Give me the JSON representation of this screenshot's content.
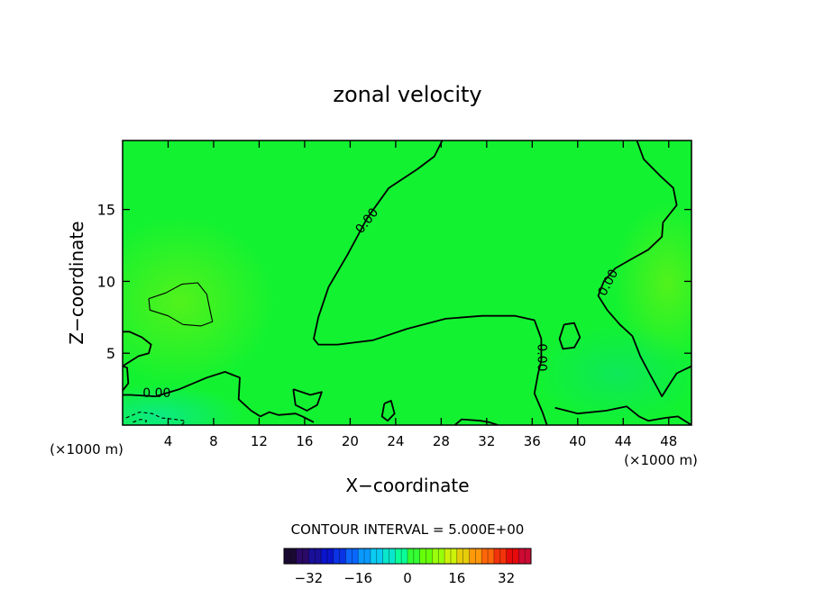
{
  "chart_data": {
    "type": "heatmap",
    "title": "zonal velocity",
    "xlabel": "X−coordinate",
    "ylabel": "Z−coordinate",
    "x_unit_left": "(×1000 m)",
    "x_unit_right": "(×1000 m)",
    "xlim": [
      0,
      50
    ],
    "ylim": [
      0,
      19.8
    ],
    "x_ticks": [
      4,
      8,
      12,
      16,
      20,
      24,
      28,
      32,
      36,
      40,
      44,
      48
    ],
    "x_tick_labels": [
      "4",
      "8",
      "12",
      "16",
      "20",
      "24",
      "28",
      "32",
      "36",
      "40",
      "44",
      "48"
    ],
    "y_ticks": [
      5,
      10,
      15
    ],
    "y_tick_labels": [
      "5",
      "10",
      "15"
    ],
    "contour_labels": [
      {
        "text": "0.00",
        "x": 3.0,
        "y": 2.2,
        "angle": 0
      },
      {
        "text": "0.00",
        "x": 21.5,
        "y": 14.2,
        "angle": -52
      },
      {
        "text": "0.00",
        "x": 36.8,
        "y": 4.7,
        "angle": 90
      },
      {
        "text": "0.00",
        "x": 42.7,
        "y": 9.9,
        "angle": -62
      }
    ],
    "contours": [
      {
        "level": 0,
        "style": "solid",
        "points": [
          [
            28.1,
            19.8
          ],
          [
            27.4,
            18.7
          ],
          [
            25.9,
            17.8
          ],
          [
            23.4,
            16.5
          ],
          [
            21.5,
            14.4
          ],
          [
            19.8,
            11.9
          ],
          [
            18.1,
            9.6
          ],
          [
            17.2,
            7.5
          ],
          [
            16.8,
            6.0
          ],
          [
            17.2,
            5.6
          ],
          [
            18.9,
            5.6
          ],
          [
            22.0,
            5.9
          ],
          [
            25.0,
            6.7
          ],
          [
            28.4,
            7.4
          ],
          [
            31.6,
            7.6
          ],
          [
            34.5,
            7.6
          ],
          [
            36.2,
            7.3
          ],
          [
            36.8,
            6.0
          ],
          [
            36.8,
            4.5
          ],
          [
            36.5,
            3.5
          ],
          [
            36.2,
            2.2
          ],
          [
            36.9,
            0.9
          ],
          [
            37.3,
            0
          ]
        ]
      },
      {
        "level": 0,
        "style": "solid",
        "points": [
          [
            0,
            2.1
          ],
          [
            0.7,
            2.1
          ],
          [
            2.9,
            2.0
          ],
          [
            5.0,
            2.5
          ],
          [
            7.4,
            3.3
          ],
          [
            9.0,
            3.7
          ],
          [
            10.3,
            3.3
          ],
          [
            10.2,
            1.8
          ],
          [
            11.3,
            1.0
          ],
          [
            12.1,
            0.6
          ],
          [
            12.9,
            0.9
          ],
          [
            13.7,
            0.7
          ],
          [
            15.2,
            0.8
          ],
          [
            15.8,
            0.6
          ],
          [
            16.8,
            0.2
          ]
        ]
      },
      {
        "level": 0,
        "style": "solid",
        "points": [
          [
            0,
            2.4
          ],
          [
            0.5,
            2.9
          ],
          [
            0.4,
            4.0
          ],
          [
            0,
            4.1
          ]
        ]
      },
      {
        "level": 0,
        "style": "solid",
        "points": [
          [
            45.2,
            19.8
          ],
          [
            45.8,
            18.5
          ],
          [
            47.3,
            17.3
          ],
          [
            48.4,
            16.5
          ],
          [
            48.7,
            15.3
          ],
          [
            47.5,
            14.1
          ],
          [
            47.4,
            13.1
          ],
          [
            46.2,
            12.2
          ],
          [
            44.6,
            11.5
          ],
          [
            43.3,
            10.9
          ],
          [
            42.3,
            10.0
          ],
          [
            41.8,
            9.0
          ],
          [
            42.6,
            8.0
          ],
          [
            43.7,
            7.0
          ],
          [
            44.8,
            6.2
          ],
          [
            45.5,
            4.8
          ],
          [
            46.3,
            3.6
          ],
          [
            47.0,
            2.6
          ],
          [
            47.4,
            2.0
          ],
          [
            48.2,
            3.0
          ],
          [
            48.7,
            3.6
          ],
          [
            50,
            4.1
          ]
        ]
      },
      {
        "level": 0,
        "style": "solid",
        "points": [
          [
            38.8,
            7.0
          ],
          [
            39.7,
            7.1
          ],
          [
            40.2,
            6.1
          ],
          [
            39.7,
            5.4
          ],
          [
            38.7,
            5.3
          ],
          [
            38.4,
            6.0
          ],
          [
            38.8,
            7.0
          ]
        ]
      },
      {
        "level": 0,
        "style": "solid",
        "points": [
          [
            15.0,
            2.5
          ],
          [
            16.5,
            2.1
          ],
          [
            17.5,
            2.3
          ],
          [
            17.1,
            1.4
          ],
          [
            16.2,
            1.0
          ],
          [
            15.2,
            1.4
          ],
          [
            15.0,
            2.5
          ]
        ]
      },
      {
        "level": 0,
        "style": "solid",
        "points": [
          [
            23.0,
            1.5
          ],
          [
            23.6,
            1.7
          ],
          [
            23.9,
            0.8
          ],
          [
            23.3,
            0.3
          ],
          [
            22.8,
            0.6
          ],
          [
            23.0,
            1.5
          ]
        ]
      },
      {
        "level": 0,
        "style": "solid",
        "points": [
          [
            29.2,
            0
          ],
          [
            29.8,
            0.4
          ],
          [
            31.5,
            0.3
          ],
          [
            32.2,
            0.2
          ],
          [
            33.0,
            0
          ]
        ]
      },
      {
        "level": 0,
        "style": "solid",
        "points": [
          [
            38.0,
            1.2
          ],
          [
            40.0,
            0.8
          ],
          [
            42.5,
            1.0
          ],
          [
            44.3,
            1.3
          ],
          [
            45.4,
            0.6
          ],
          [
            46.2,
            0.3
          ],
          [
            47.7,
            0.5
          ],
          [
            48.8,
            0.6
          ],
          [
            50,
            0
          ]
        ]
      },
      {
        "level": 0,
        "style": "solid",
        "points": [
          [
            0,
            4.1
          ],
          [
            0.6,
            4.4
          ],
          [
            1.4,
            4.8
          ],
          [
            2.3,
            5.0
          ],
          [
            2.5,
            5.6
          ],
          [
            1.7,
            6.1
          ],
          [
            0.6,
            6.5
          ],
          [
            0,
            6.5
          ]
        ]
      },
      {
        "level": 5,
        "style": "solid",
        "points": [
          [
            2.3,
            8.8
          ],
          [
            3.8,
            9.2
          ],
          [
            5.2,
            9.8
          ],
          [
            6.6,
            9.9
          ],
          [
            7.4,
            9.1
          ],
          [
            7.6,
            8.3
          ],
          [
            7.9,
            7.2
          ],
          [
            6.9,
            6.9
          ],
          [
            5.3,
            7.0
          ],
          [
            4.0,
            7.6
          ],
          [
            2.4,
            8.0
          ],
          [
            2.3,
            8.8
          ]
        ]
      },
      {
        "level": -5,
        "style": "dashed",
        "points": [
          [
            0.3,
            0.5
          ],
          [
            1.5,
            0.9
          ],
          [
            2.6,
            0.8
          ],
          [
            3.4,
            0.5
          ],
          [
            4.6,
            0.4
          ],
          [
            5.5,
            0.3
          ],
          [
            5.2,
            0
          ]
        ]
      },
      {
        "level": -5,
        "style": "dashed",
        "points": [
          [
            0.9,
            0.2
          ],
          [
            1.6,
            0.4
          ],
          [
            2.1,
            0.3
          ],
          [
            1.9,
            0
          ]
        ]
      }
    ],
    "colorbar": {
      "label": "CONTOUR INTERVAL = 5.000E+00",
      "ticks": [
        -32,
        -16,
        0,
        16,
        32
      ],
      "tick_labels": [
        "−32",
        "−16",
        "0",
        "16",
        "32"
      ],
      "range": [
        -40,
        40
      ],
      "colors": [
        "#1a0a33",
        "#2b0a66",
        "#1a0f99",
        "#0a14cc",
        "#0a33e6",
        "#0a66ff",
        "#0a99ff",
        "#0accf2",
        "#0ae6cc",
        "#0aff99",
        "#33ff33",
        "#66ff0a",
        "#99ff0a",
        "#ccf20a",
        "#e6cc0a",
        "#ff990a",
        "#ff660a",
        "#f2330a",
        "#e60a0a",
        "#cc0a33"
      ]
    }
  }
}
